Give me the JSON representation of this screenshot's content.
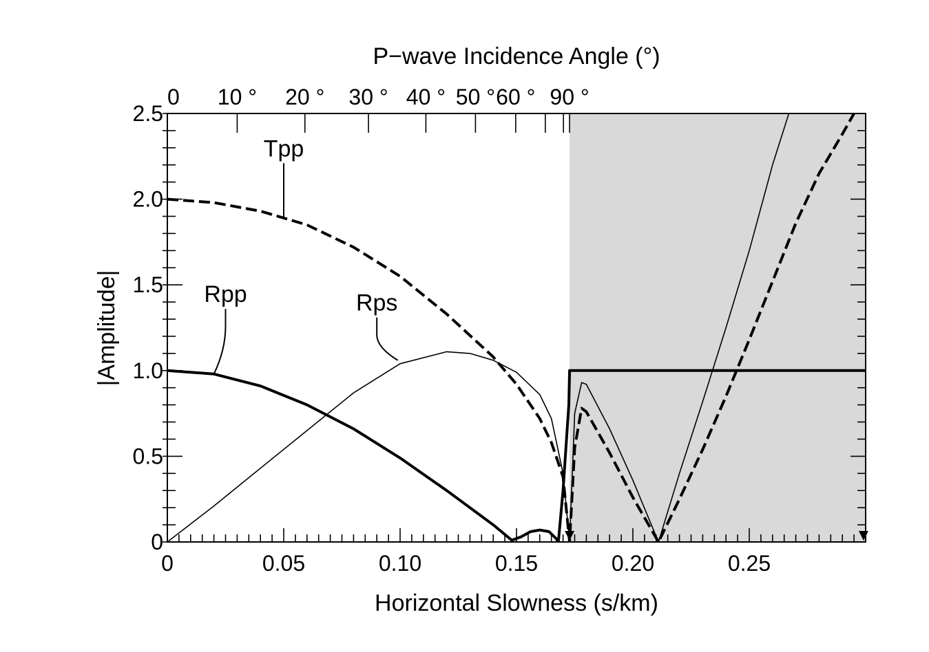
{
  "chart_data": {
    "type": "line",
    "title": "P−wave Incidence Angle (°)",
    "xlabel": "Horizontal Slowness (s/km)",
    "ylabel": "|Amplitude|",
    "xlim": [
      0,
      0.3
    ],
    "ylim": [
      0,
      2.5
    ],
    "x_ticks": [
      {
        "value": 0,
        "label": "0"
      },
      {
        "value": 0.05,
        "label": "0.05"
      },
      {
        "value": 0.1,
        "label": "0.10"
      },
      {
        "value": 0.15,
        "label": "0.15"
      },
      {
        "value": 0.2,
        "label": "0.20"
      },
      {
        "value": 0.25,
        "label": "0.25"
      }
    ],
    "y_ticks": [
      {
        "value": 0,
        "label": "0"
      },
      {
        "value": 0.5,
        "label": "0.5"
      },
      {
        "value": 1.0,
        "label": "1.0"
      },
      {
        "value": 1.5,
        "label": "1.5"
      },
      {
        "value": 2.0,
        "label": "2.0"
      },
      {
        "value": 2.5,
        "label": "2.5"
      }
    ],
    "top_axis": {
      "ticks": [
        {
          "value": 0,
          "label": "0"
        },
        {
          "value": 10,
          "label": "10 °"
        },
        {
          "value": 20,
          "label": "20 °"
        },
        {
          "value": 30,
          "label": "30 °"
        },
        {
          "value": 40,
          "label": "40 °"
        },
        {
          "value": 50,
          "label": "50 °"
        },
        {
          "value": 60,
          "label": "60 °"
        },
        {
          "value": 90,
          "label": "90 °"
        }
      ],
      "minor_ticks": [
        70,
        80
      ]
    },
    "shaded_region": {
      "x_start": 0.1728,
      "x_end": 0.3,
      "color": "#d9d9d9"
    },
    "critical_slowness_markers": [
      0.1728,
      0.3
    ],
    "series": [
      {
        "name": "Tpp",
        "style": "dashed",
        "x": [
          0,
          0.02,
          0.04,
          0.06,
          0.08,
          0.1,
          0.12,
          0.14,
          0.15,
          0.16,
          0.165,
          0.17,
          0.1728,
          0.175,
          0.178,
          0.18,
          0.19,
          0.2,
          0.211,
          0.22,
          0.23,
          0.24,
          0.25,
          0.26,
          0.27,
          0.28,
          0.29,
          0.295
        ],
        "values": [
          2.0,
          1.98,
          1.93,
          1.85,
          1.72,
          1.55,
          1.33,
          1.08,
          0.92,
          0.72,
          0.58,
          0.38,
          0.0,
          0.55,
          0.78,
          0.76,
          0.52,
          0.26,
          0.0,
          0.25,
          0.54,
          0.85,
          1.18,
          1.52,
          1.86,
          2.15,
          2.38,
          2.5
        ]
      },
      {
        "name": "Rpp",
        "style": "thick",
        "x": [
          0,
          0.02,
          0.04,
          0.06,
          0.08,
          0.1,
          0.12,
          0.14,
          0.148,
          0.152,
          0.156,
          0.16,
          0.164,
          0.167,
          0.168,
          0.17,
          0.1725,
          0.1728,
          0.2,
          0.25,
          0.3
        ],
        "values": [
          1.0,
          0.98,
          0.91,
          0.8,
          0.66,
          0.49,
          0.3,
          0.1,
          0.01,
          0.03,
          0.06,
          0.07,
          0.06,
          0.02,
          0.0,
          0.3,
          0.8,
          1.0,
          1.0,
          1.0,
          1.0
        ]
      },
      {
        "name": "Rps",
        "style": "thin",
        "x": [
          0,
          0.02,
          0.04,
          0.06,
          0.08,
          0.1,
          0.12,
          0.13,
          0.14,
          0.15,
          0.16,
          0.165,
          0.17,
          0.1728,
          0.175,
          0.178,
          0.18,
          0.19,
          0.2,
          0.211,
          0.22,
          0.23,
          0.24,
          0.25,
          0.26,
          0.267
        ],
        "values": [
          0.0,
          0.21,
          0.43,
          0.65,
          0.87,
          1.04,
          1.11,
          1.1,
          1.06,
          0.99,
          0.86,
          0.72,
          0.4,
          0.0,
          0.75,
          0.93,
          0.92,
          0.66,
          0.36,
          0.0,
          0.4,
          0.82,
          1.25,
          1.7,
          2.2,
          2.5
        ]
      }
    ],
    "annotations": [
      {
        "text": "Tpp",
        "series": "Tpp",
        "x": 0.05,
        "y": 1.89,
        "label_x": 0.05,
        "label_y": 2.25
      },
      {
        "text": "Rpp",
        "series": "Rpp",
        "x": 0.02,
        "y": 0.98,
        "label_x": 0.025,
        "label_y": 1.4
      },
      {
        "text": "Rps",
        "series": "Rps",
        "x": 0.099,
        "y": 1.06,
        "label_x": 0.09,
        "label_y": 1.35
      }
    ]
  }
}
